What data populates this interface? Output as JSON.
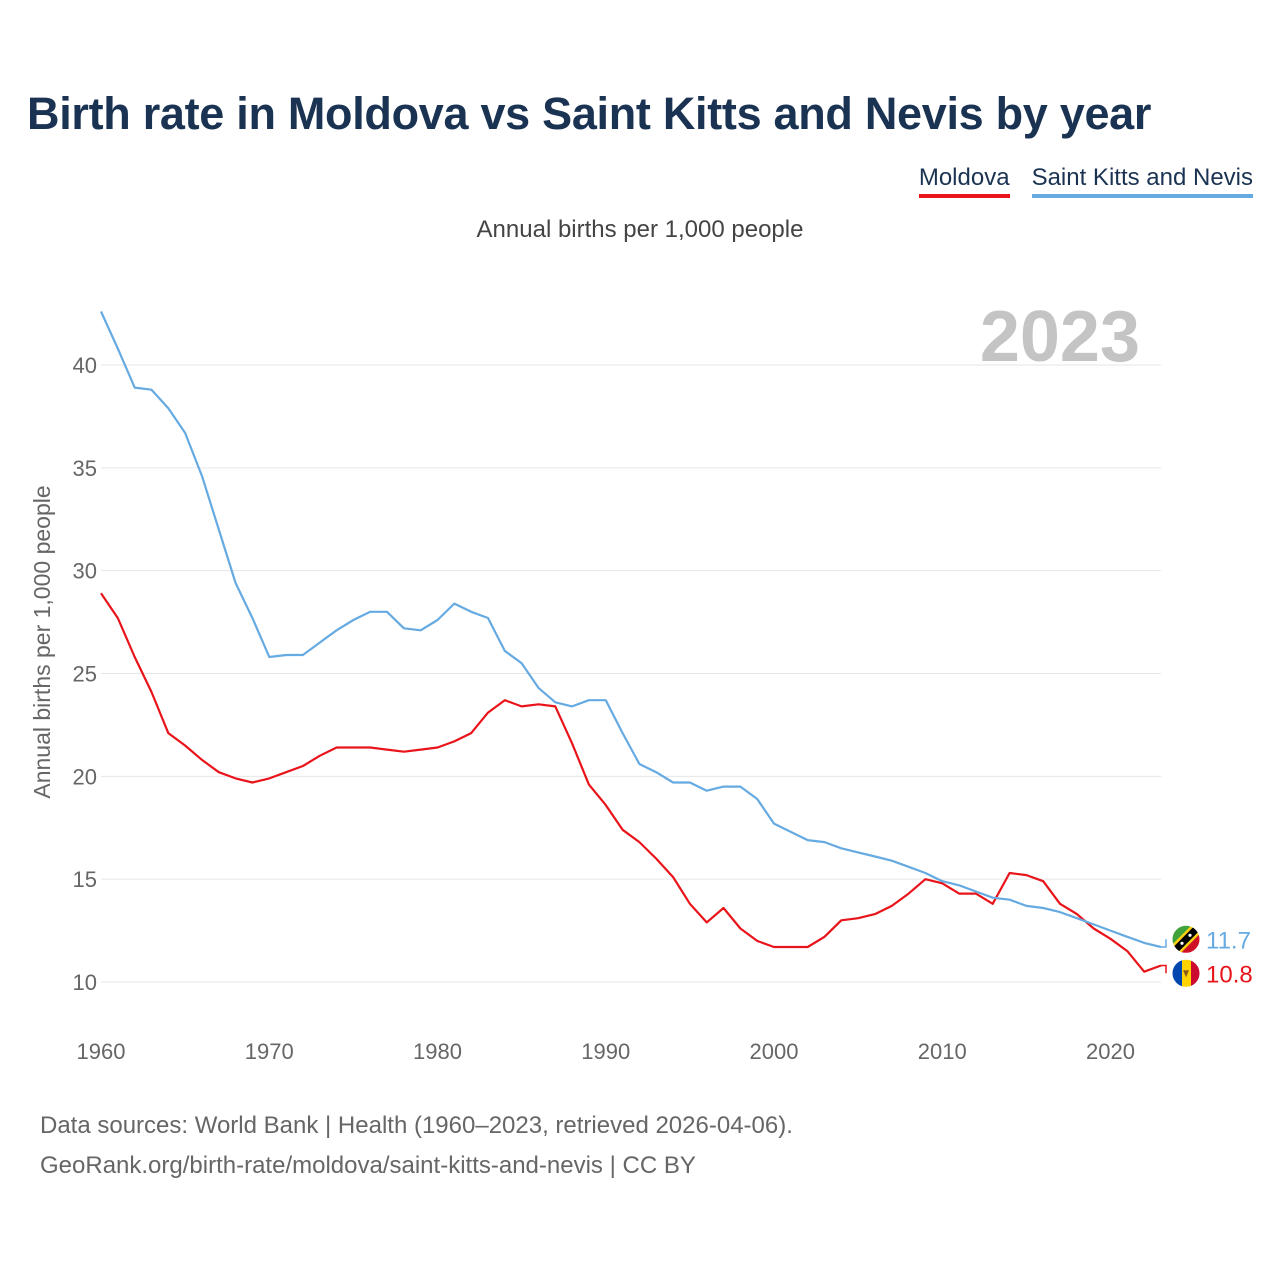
{
  "title": "Birth rate in Moldova vs Saint Kitts and Nevis by year",
  "subtitle": "Annual births per 1,000 people",
  "legend": [
    {
      "name": "Moldova",
      "color": "#e8141a"
    },
    {
      "name": "Saint Kitts and Nevis",
      "color": "#66aae2"
    }
  ],
  "footer": {
    "line1": "Data sources: World Bank | Health (1960–2023, retrieved 2026-04-06).",
    "line2": "GeoRank.org/birth-rate/moldova/saint-kitts-and-nevis | CC BY"
  },
  "chart_data": {
    "type": "line",
    "title": "Birth rate in Moldova vs Saint Kitts and Nevis by year",
    "ylabel": "Annual births per 1,000 people",
    "xlabel": "",
    "current_year_label": "2023",
    "xlim": [
      1960,
      2023
    ],
    "ylim": [
      8,
      43
    ],
    "x_ticks": [
      1960,
      1970,
      1980,
      1990,
      2000,
      2010,
      2020
    ],
    "y_ticks": [
      10,
      15,
      20,
      25,
      30,
      35,
      40
    ],
    "grid": true,
    "x": [
      1960,
      1961,
      1962,
      1963,
      1964,
      1965,
      1966,
      1967,
      1968,
      1969,
      1970,
      1971,
      1972,
      1973,
      1974,
      1975,
      1976,
      1977,
      1978,
      1979,
      1980,
      1981,
      1982,
      1983,
      1984,
      1985,
      1986,
      1987,
      1988,
      1989,
      1990,
      1991,
      1992,
      1993,
      1994,
      1995,
      1996,
      1997,
      1998,
      1999,
      2000,
      2001,
      2002,
      2003,
      2004,
      2005,
      2006,
      2007,
      2008,
      2009,
      2010,
      2011,
      2012,
      2013,
      2014,
      2015,
      2016,
      2017,
      2018,
      2019,
      2020,
      2021,
      2022,
      2023
    ],
    "series": [
      {
        "name": "Moldova",
        "color": "#e8141a",
        "end_label": "10.8",
        "values": [
          28.9,
          27.7,
          25.8,
          24.1,
          22.1,
          21.5,
          20.8,
          20.2,
          19.9,
          19.7,
          19.9,
          20.2,
          20.5,
          21.0,
          21.4,
          21.4,
          21.4,
          21.3,
          21.2,
          21.3,
          21.4,
          21.7,
          22.1,
          23.1,
          23.7,
          23.4,
          23.5,
          23.4,
          21.6,
          19.6,
          18.6,
          17.4,
          16.8,
          16.0,
          15.1,
          13.8,
          12.9,
          13.6,
          12.6,
          12.0,
          11.7,
          11.7,
          11.7,
          12.2,
          13.0,
          13.1,
          13.3,
          13.7,
          14.3,
          15.0,
          14.8,
          14.3,
          14.3,
          13.8,
          15.3,
          15.2,
          14.9,
          13.8,
          13.3,
          12.6,
          12.1,
          11.5,
          10.5,
          10.8
        ]
      },
      {
        "name": "Saint Kitts and Nevis",
        "color": "#66aae2",
        "end_label": "11.7",
        "values": [
          42.6,
          40.8,
          38.9,
          38.8,
          37.9,
          36.7,
          34.6,
          32.0,
          29.4,
          27.7,
          25.8,
          25.9,
          25.9,
          26.5,
          27.1,
          27.6,
          28.0,
          28.0,
          27.2,
          27.1,
          27.6,
          28.4,
          28.0,
          27.7,
          26.1,
          25.5,
          24.3,
          23.6,
          23.4,
          23.7,
          23.7,
          22.1,
          20.6,
          20.2,
          19.7,
          19.7,
          19.3,
          19.5,
          19.5,
          18.9,
          17.7,
          17.3,
          16.9,
          16.8,
          16.5,
          16.3,
          16.1,
          15.9,
          15.6,
          15.3,
          14.9,
          14.7,
          14.4,
          14.1,
          14.0,
          13.7,
          13.6,
          13.4,
          13.1,
          12.8,
          12.5,
          12.2,
          11.9,
          11.7
        ]
      }
    ]
  }
}
